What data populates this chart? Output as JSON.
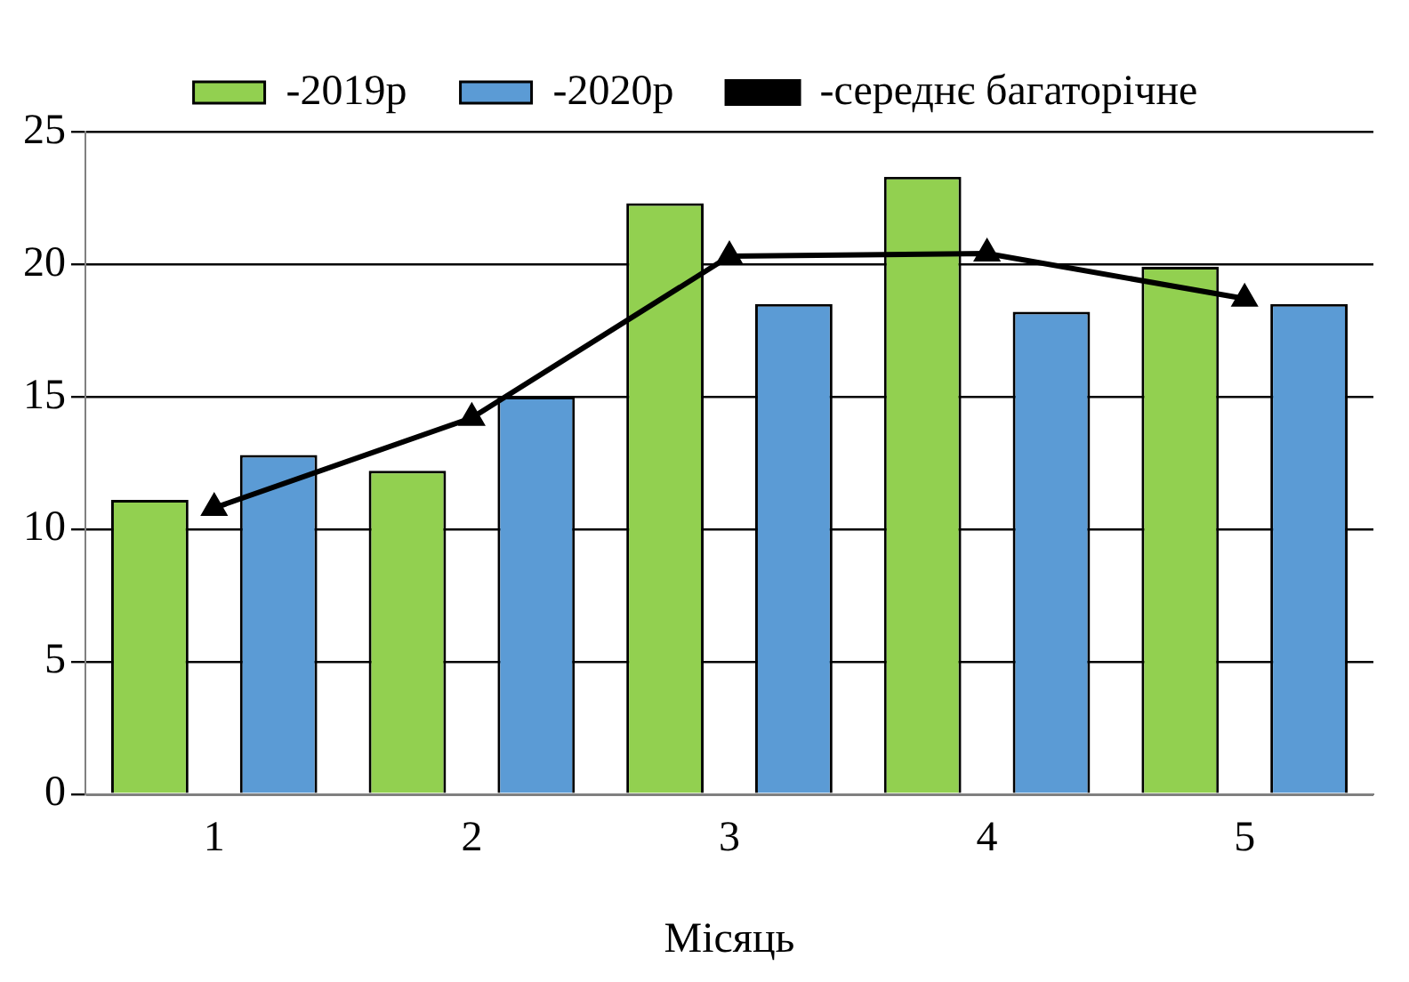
{
  "chart_data": {
    "type": "bar",
    "xlabel": "Місяць",
    "categories": [
      "1",
      "2",
      "3",
      "4",
      "5"
    ],
    "series": [
      {
        "name": "-2019р",
        "color": "#92d050",
        "values": [
          11.1,
          12.2,
          22.3,
          23.3,
          19.9
        ]
      },
      {
        "name": "-2020р",
        "color": "#5b9bd5",
        "values": [
          12.8,
          15.0,
          18.5,
          18.2,
          18.5
        ]
      },
      {
        "name": "-середнє багаторічне",
        "type": "line",
        "color": "#000000",
        "marker": "triangle",
        "values": [
          10.8,
          14.2,
          20.3,
          20.4,
          18.7
        ]
      }
    ],
    "ylim": [
      0,
      25
    ],
    "yticks": [
      0,
      5,
      10,
      15,
      20,
      25
    ],
    "grid": "y",
    "legend": "top"
  }
}
